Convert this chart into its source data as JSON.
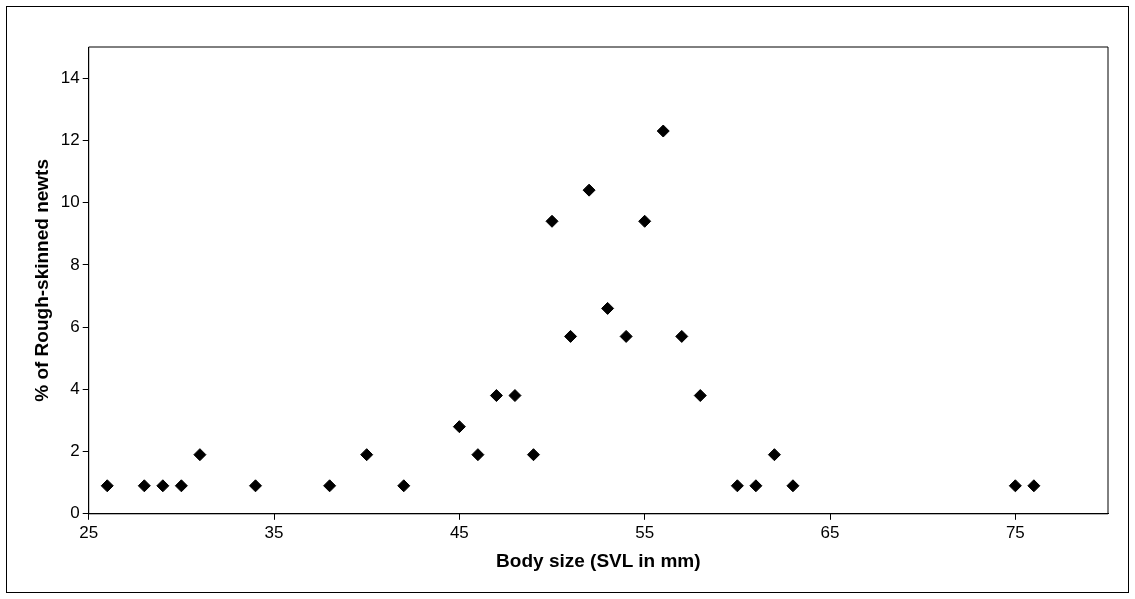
{
  "chart_data": {
    "type": "scatter",
    "xlabel": "Body size (SVL in mm)",
    "ylabel": "% of Rough-skinned newts",
    "x": [
      26,
      28,
      29,
      30,
      31,
      34,
      38,
      40,
      42,
      45,
      46,
      47,
      48,
      49,
      50,
      51,
      52,
      53,
      54,
      55,
      56,
      57,
      58,
      60,
      61,
      62,
      63,
      75,
      76
    ],
    "series": [
      {
        "color": "#000000",
        "values": [
          0.9,
          0.9,
          0.9,
          0.9,
          1.9,
          0.9,
          0.9,
          1.9,
          0.9,
          2.8,
          1.9,
          3.8,
          3.8,
          1.9,
          9.4,
          5.7,
          10.4,
          6.6,
          5.7,
          9.4,
          12.3,
          5.7,
          3.8,
          0.9,
          0.9,
          1.9,
          0.9,
          0.9,
          0.9
        ]
      }
    ],
    "xlim": [
      25,
      80
    ],
    "xticks": [
      25,
      35,
      45,
      55,
      65,
      75
    ],
    "ylim": [
      0,
      15
    ],
    "yticks": [
      0,
      2,
      4,
      6,
      8,
      10,
      12,
      14
    ],
    "grid": false,
    "legend": false,
    "marker": "diamond"
  }
}
